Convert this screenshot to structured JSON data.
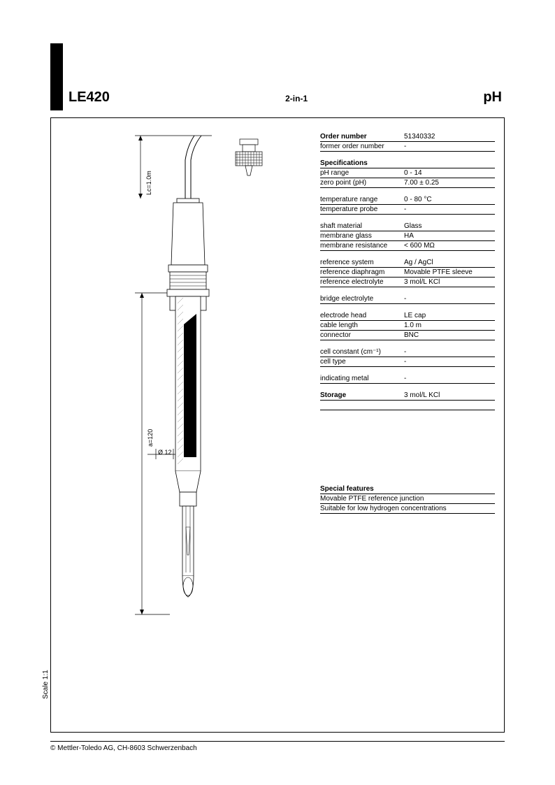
{
  "header": {
    "model": "LE420",
    "subtitle": "2-in-1",
    "type": "pH"
  },
  "scale": "Scale 1:1",
  "footer": "© Mettler-Toledo AG, CH-8603 Schwerzenbach",
  "order": {
    "label": "Order number",
    "value": "51340332",
    "former_label": "former order number",
    "former_value": "-"
  },
  "specs_heading": "Specifications",
  "specs": [
    {
      "label": "pH range",
      "value": "0 - 14"
    },
    {
      "label": "zero point (pH)",
      "value": "7.00 ± 0.25"
    }
  ],
  "specs2": [
    {
      "label": "temperature range",
      "value": "0 - 80 °C"
    },
    {
      "label": "temperature probe",
      "value": "-"
    }
  ],
  "specs3": [
    {
      "label": "shaft material",
      "value": "Glass"
    },
    {
      "label": "membrane glass",
      "value": "HA"
    },
    {
      "label": "membrane resistance",
      "value": "< 600 MΩ"
    }
  ],
  "specs4": [
    {
      "label": "reference system",
      "value": "Ag / AgCl"
    },
    {
      "label": "reference diaphragm",
      "value": "Movable PTFE sleeve"
    },
    {
      "label": "reference electrolyte",
      "value": "3 mol/L KCl"
    }
  ],
  "specs5": [
    {
      "label": "bridge electrolyte",
      "value": "-"
    }
  ],
  "specs6": [
    {
      "label": "electrode head",
      "value": "LE cap"
    },
    {
      "label": "cable length",
      "value": "1.0 m"
    },
    {
      "label": "connector",
      "value": "BNC"
    }
  ],
  "specs7": [
    {
      "label": "cell constant (cm⁻¹)",
      "value": "-"
    },
    {
      "label": "cell type",
      "value": "-"
    }
  ],
  "specs8": [
    {
      "label": "indicating metal",
      "value": "-"
    }
  ],
  "storage": {
    "label": "Storage",
    "value": "3 mol/L KCl"
  },
  "features": {
    "heading": "Special features",
    "lines": [
      "Movable PTFE reference junction",
      "Suitable for low hydrogen concentrations"
    ]
  },
  "diagram": {
    "lc_label": "Lc=1.0m",
    "a_label": "a=120",
    "d_label": "Ø 12",
    "colors": {
      "stroke": "#000000",
      "fill_dark": "#000000",
      "fill_light": "#ffffff",
      "hatch": "#888888"
    }
  }
}
